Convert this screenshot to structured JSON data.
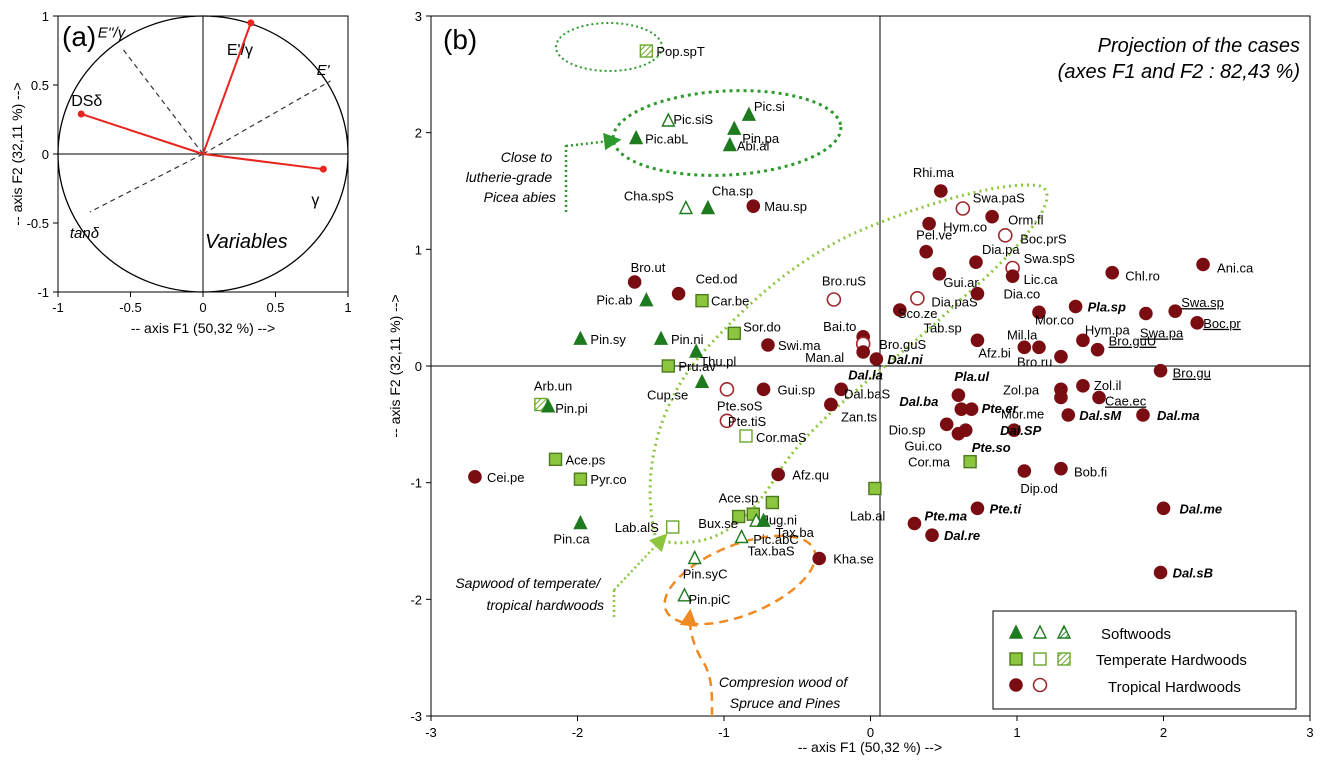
{
  "chart_data": [
    {
      "panel": "(a)",
      "type": "scatter",
      "subtype": "correlation-circle",
      "title": "Variables",
      "xlabel": "-- axis F1 (50,32 %) -->",
      "ylabel": "-- axis F2 (32,11 %) -->",
      "xlim": [
        -1,
        1
      ],
      "ylim": [
        -1,
        1
      ],
      "xticks": [
        "-1",
        "-0.5",
        "0",
        "0.5",
        "1"
      ],
      "yticks": [
        "-1",
        "-0.5",
        "0",
        "0.5",
        "1"
      ],
      "grid": false,
      "active_variables": [
        {
          "label": "DSδ",
          "x": -0.84,
          "y": 0.29
        },
        {
          "label": "E'/γ",
          "x": 0.33,
          "y": 0.95
        },
        {
          "label": "γ",
          "x": 0.83,
          "y": -0.11
        }
      ],
      "supplementary_variables": [
        {
          "label": "E''/γ",
          "x": -0.56,
          "y": 0.77
        },
        {
          "label": "E'",
          "x": 0.88,
          "y": 0.53
        },
        {
          "label": "tanδ",
          "x": -0.78,
          "y": -0.42
        }
      ]
    },
    {
      "panel": "(b)",
      "type": "scatter",
      "title": "Projection of the cases",
      "subtitle": "(axes F1 and F2 : 82,43 %)",
      "xlabel": "-- axis F1 (50,32 %) -->",
      "ylabel": "-- axis F2 (32,11 %) -->",
      "xlim": [
        -3,
        3
      ],
      "ylim": [
        -3,
        3
      ],
      "xticks": [
        "-3",
        "-2",
        "-1",
        "0",
        "1",
        "2",
        "3"
      ],
      "yticks": [
        "-3",
        "-2",
        "-1",
        "0",
        "1",
        "2",
        "3"
      ],
      "grid": false,
      "legend_position": "bottom-right",
      "legend": [
        {
          "label": "Softwoods",
          "markers": [
            "tri-filled",
            "tri-open",
            "tri-hatched"
          ]
        },
        {
          "label": "Temperate Hardwoods",
          "markers": [
            "sq-filled",
            "sq-open",
            "sq-hatched"
          ]
        },
        {
          "label": "Tropical Hardwoods",
          "markers": [
            "circ-filled",
            "circ-open"
          ]
        }
      ],
      "colors": {
        "softwood": "#1e7a1e",
        "temperate": "#8cc63f",
        "tropical": "#7a0d12",
        "tropical_open": "#9e2a2f"
      },
      "points": [
        {
          "label": "Pop.spT",
          "x": -1.53,
          "y": 2.7,
          "g": "sq-hatched",
          "lx": 10,
          "ly": 5
        },
        {
          "label": "Pic.siS",
          "x": -1.38,
          "y": 2.1,
          "g": "tri-open",
          "lx": 5,
          "ly": 3
        },
        {
          "label": "Pic.si",
          "x": -0.83,
          "y": 2.15,
          "g": "tri-filled",
          "lx": 5,
          "ly": -4
        },
        {
          "label": "Pic.abL",
          "x": -1.6,
          "y": 1.95,
          "g": "tri-filled",
          "lx": 9,
          "ly": 5
        },
        {
          "label": "Pin.pa",
          "x": -0.93,
          "y": 2.03,
          "g": "tri-filled",
          "lx": 8,
          "ly": 14
        },
        {
          "label": "Abi.al",
          "x": -0.96,
          "y": 1.89,
          "g": "tri-filled",
          "lx": 7,
          "ly": 5
        },
        {
          "label": "Cha.spS",
          "x": -1.26,
          "y": 1.35,
          "g": "tri-open",
          "lx": -62,
          "ly": -8
        },
        {
          "label": "Cha.sp",
          "x": -1.11,
          "y": 1.35,
          "g": "tri-filled",
          "lx": 4,
          "ly": -13
        },
        {
          "label": "Mau.sp",
          "x": -0.8,
          "y": 1.37,
          "g": "circ-filled",
          "lx": 11,
          "ly": 5
        },
        {
          "label": "Bro.ut",
          "x": -1.61,
          "y": 0.72,
          "g": "circ-filled",
          "lx": -4,
          "ly": -10
        },
        {
          "label": "Ced.od",
          "x": -1.31,
          "y": 0.62,
          "g": "circ-filled",
          "lx": 17,
          "ly": -10
        },
        {
          "label": "Car.be",
          "x": -1.15,
          "y": 0.56,
          "g": "sq-filled",
          "lx": 9,
          "ly": 5
        },
        {
          "label": "Pic.ab",
          "x": -1.53,
          "y": 0.56,
          "g": "tri-filled",
          "lx": -50,
          "ly": 4
        },
        {
          "label": "Pin.sy",
          "x": -1.98,
          "y": 0.23,
          "g": "tri-filled",
          "lx": 10,
          "ly": 5
        },
        {
          "label": "Pin.ni",
          "x": -1.43,
          "y": 0.23,
          "g": "tri-filled",
          "lx": 10,
          "ly": 5
        },
        {
          "label": "Sor.do",
          "x": -0.93,
          "y": 0.28,
          "g": "sq-filled",
          "lx": 9,
          "ly": -2
        },
        {
          "label": "Thu.pl",
          "x": -1.19,
          "y": 0.12,
          "g": "tri-filled",
          "lx": 4,
          "ly": 14
        },
        {
          "label": "Swi.ma",
          "x": -0.7,
          "y": 0.18,
          "g": "circ-filled",
          "lx": 10,
          "ly": 5
        },
        {
          "label": "Pru.av",
          "x": -1.38,
          "y": 0.0,
          "g": "sq-filled",
          "lx": 10,
          "ly": 5
        },
        {
          "label": "Cup.se",
          "x": -1.15,
          "y": -0.14,
          "g": "tri-filled",
          "lx": -55,
          "ly": 17
        },
        {
          "label": "Arb.un",
          "x": -2.25,
          "y": -0.33,
          "g": "sq-hatched",
          "lx": -7,
          "ly": -14
        },
        {
          "label": "Pin.pi",
          "x": -2.2,
          "y": -0.35,
          "g": "tri-filled",
          "lx": 7,
          "ly": 6
        },
        {
          "label": "Gui.sp",
          "x": -0.73,
          "y": -0.2,
          "g": "circ-filled",
          "lx": 14,
          "ly": 5
        },
        {
          "label": "Pte.soS",
          "x": -0.98,
          "y": -0.2,
          "g": "circ-open",
          "lx": -10,
          "ly": 21
        },
        {
          "label": "Pte.tiS",
          "x": -0.98,
          "y": -0.47,
          "g": "circ-open",
          "lx": 1,
          "ly": 5
        },
        {
          "label": "Cor.maS",
          "x": -0.85,
          "y": -0.6,
          "g": "sq-open",
          "lx": 10,
          "ly": 6
        },
        {
          "label": "Ace.ps",
          "x": -2.15,
          "y": -0.8,
          "g": "sq-filled",
          "lx": 10,
          "ly": 5
        },
        {
          "label": "Pyr.co",
          "x": -1.98,
          "y": -0.97,
          "g": "sq-filled",
          "lx": 10,
          "ly": 5
        },
        {
          "label": "Cei.pe",
          "x": -2.7,
          "y": -0.95,
          "g": "circ-filled",
          "lx": 12,
          "ly": 5
        },
        {
          "label": "Afz.qu",
          "x": -0.63,
          "y": -0.93,
          "g": "circ-filled",
          "lx": 14,
          "ly": 5
        },
        {
          "label": "Ace.sp",
          "x": -0.9,
          "y": -1.29,
          "g": "sq-filled",
          "lx": -20,
          "ly": -14
        },
        {
          "label": "Jug.ni",
          "x": -0.67,
          "y": -1.17,
          "g": "sq-filled",
          "lx": -10,
          "ly": 22
        },
        {
          "label": "Bux.se",
          "x": -0.8,
          "y": -1.27,
          "g": "sq-filled",
          "lx": -55,
          "ly": 14
        },
        {
          "label": "Pic.abC",
          "x": -0.78,
          "y": -1.33,
          "g": "tri-open",
          "lx": -3,
          "ly": 23
        },
        {
          "label": "Tax.ba",
          "x": -0.73,
          "y": -1.33,
          "g": "tri-filled",
          "lx": 12,
          "ly": 16
        },
        {
          "label": "Tax.baS",
          "x": -0.88,
          "y": -1.47,
          "g": "tri-open",
          "lx": 6,
          "ly": 18
        },
        {
          "label": "Lab.alS",
          "x": -1.35,
          "y": -1.38,
          "g": "sq-open",
          "lx": -58,
          "ly": 5
        },
        {
          "label": "Pin.ca",
          "x": -1.98,
          "y": -1.35,
          "g": "tri-filled",
          "lx": -27,
          "ly": 20
        },
        {
          "label": "Pin.syC",
          "x": -1.2,
          "y": -1.65,
          "g": "tri-open",
          "lx": -12,
          "ly": 20
        },
        {
          "label": "Pin.piC",
          "x": -1.27,
          "y": -1.97,
          "g": "tri-open",
          "lx": 4,
          "ly": 8
        },
        {
          "label": "Kha.se",
          "x": -0.35,
          "y": -1.65,
          "g": "circ-filled",
          "lx": 14,
          "ly": 5
        },
        {
          "label": "Lab.al",
          "x": 0.03,
          "y": -1.05,
          "g": "sq-filled",
          "lx": -25,
          "ly": 32
        },
        {
          "label": "Bro.ruS",
          "x": -0.25,
          "y": 0.57,
          "g": "circ-open",
          "lx": -12,
          "ly": -14
        },
        {
          "label": "Bai.to",
          "x": -0.05,
          "y": 0.25,
          "g": "circ-filled",
          "lx": -40,
          "ly": -6
        },
        {
          "label": "Bro.guS",
          "x": -0.05,
          "y": 0.19,
          "g": "circ-open",
          "lx": 16,
          "ly": 5
        },
        {
          "label": "Man.al",
          "x": -0.05,
          "y": 0.12,
          "g": "circ-filled",
          "lx": -58,
          "ly": 10
        },
        {
          "label": "Dal.ni",
          "x": 0.04,
          "y": 0.06,
          "g": "circ-filled",
          "lx": 11,
          "ly": 5,
          "b": true
        },
        {
          "label": "Dal.la",
          "x": -0.2,
          "y": -0.2,
          "g": "circ-filled",
          "lx": 7,
          "ly": -10,
          "b": true
        },
        {
          "label": "Dal.baS",
          "x": -0.27,
          "y": -0.33,
          "g": "circ-filled",
          "lx": 13,
          "ly": -6
        },
        {
          "label": "Zan.ts",
          "x": -0.27,
          "y": -0.33,
          "g": "circ-filled",
          "lx": 0,
          "ly": 17
        },
        {
          "label": "Rhi.ma",
          "x": 0.48,
          "y": 1.5,
          "g": "circ-filled",
          "lx": -28,
          "ly": -14
        },
        {
          "label": "Swa.paS",
          "x": 0.63,
          "y": 1.35,
          "g": "circ-open",
          "lx": 10,
          "ly": -6
        },
        {
          "label": "Hym.co",
          "x": 0.4,
          "y": 1.22,
          "g": "circ-filled",
          "lx": 14,
          "ly": 8
        },
        {
          "label": "Orm.fl",
          "x": 0.83,
          "y": 1.28,
          "g": "circ-filled",
          "lx": 16,
          "ly": 8
        },
        {
          "label": "Boc.prS",
          "x": 0.92,
          "y": 1.12,
          "g": "circ-open",
          "lx": 15,
          "ly": 8
        },
        {
          "label": "Pel.ve",
          "x": 0.38,
          "y": 0.98,
          "g": "circ-filled",
          "lx": -10,
          "ly": -12
        },
        {
          "label": "Dia.pa",
          "x": 0.72,
          "y": 0.89,
          "g": "circ-filled",
          "lx": 6,
          "ly": -8
        },
        {
          "label": "Swa.spS",
          "x": 0.97,
          "y": 0.84,
          "g": "circ-open",
          "lx": 11,
          "ly": -5
        },
        {
          "label": "Lic.ca",
          "x": 0.97,
          "y": 0.77,
          "g": "circ-filled",
          "lx": 11,
          "ly": 8
        },
        {
          "label": "Gui.ar",
          "x": 0.47,
          "y": 0.79,
          "g": "circ-filled",
          "lx": 4,
          "ly": 13
        },
        {
          "label": "Chl.ro",
          "x": 1.65,
          "y": 0.8,
          "g": "circ-filled",
          "lx": 13,
          "ly": 8
        },
        {
          "label": "Ani.ca",
          "x": 2.27,
          "y": 0.87,
          "g": "circ-filled",
          "lx": 14,
          "ly": 8
        },
        {
          "label": "Dia.paS",
          "x": 0.32,
          "y": 0.58,
          "g": "circ-open",
          "lx": 14,
          "ly": 8
        },
        {
          "label": "Sco.ze",
          "x": 0.2,
          "y": 0.48,
          "g": "circ-filled",
          "lx": -2,
          "ly": 8
        },
        {
          "label": "Dia.co",
          "x": 0.73,
          "y": 0.62,
          "g": "circ-filled",
          "lx": 26,
          "ly": 0
        },
        {
          "label": "Pla.sp",
          "x": 1.4,
          "y": 0.51,
          "g": "circ-filled",
          "lx": 12,
          "ly": 5,
          "b": true
        },
        {
          "label": "Mor.co",
          "x": 1.15,
          "y": 0.46,
          "g": "circ-filled",
          "lx": -4,
          "ly": 12
        },
        {
          "label": "Swa.sp",
          "x": 2.08,
          "y": 0.47,
          "g": "circ-filled",
          "lx": 6,
          "ly": -4,
          "u": true
        },
        {
          "label": "Swa.pa",
          "x": 1.88,
          "y": 0.45,
          "g": "circ-filled",
          "lx": -6,
          "ly": 24,
          "u": true
        },
        {
          "label": "Boc.pr",
          "x": 2.23,
          "y": 0.37,
          "g": "circ-filled",
          "lx": 6,
          "ly": 5,
          "u": true
        },
        {
          "label": "Tab.sp",
          "x": 0.73,
          "y": 0.22,
          "g": "circ-filled",
          "lx": -54,
          "ly": -8
        },
        {
          "label": "Hym.pa",
          "x": 1.45,
          "y": 0.22,
          "g": "circ-filled",
          "lx": 2,
          "ly": -6
        },
        {
          "label": "Mil.la",
          "x": 1.15,
          "y": 0.16,
          "g": "circ-filled",
          "lx": -32,
          "ly": -8
        },
        {
          "label": "Afz.bi",
          "x": 1.05,
          "y": 0.16,
          "g": "circ-filled",
          "lx": -46,
          "ly": 10
        },
        {
          "label": "Bro.ru",
          "x": 1.3,
          "y": 0.08,
          "g": "circ-filled",
          "lx": -44,
          "ly": 10
        },
        {
          "label": "Bro.guU",
          "x": 1.55,
          "y": 0.14,
          "g": "circ-filled",
          "lx": 11,
          "ly": -4,
          "u": true
        },
        {
          "label": "Bro.gu",
          "x": 1.98,
          "y": -0.04,
          "g": "circ-filled",
          "lx": 12,
          "ly": 7,
          "u": true
        },
        {
          "label": "Pla.ul",
          "x": 0.6,
          "y": -0.25,
          "g": "circ-filled",
          "lx": -4,
          "ly": -14,
          "b": true
        },
        {
          "label": "Dal.ba",
          "x": 0.62,
          "y": -0.37,
          "g": "circ-filled",
          "lx": -62,
          "ly": -3,
          "b": true
        },
        {
          "label": "Pte.er",
          "x": 0.69,
          "y": -0.37,
          "g": "circ-filled",
          "lx": 10,
          "ly": 4,
          "b": true
        },
        {
          "label": "Zol.pa",
          "x": 1.3,
          "y": -0.2,
          "g": "circ-filled",
          "lx": -58,
          "ly": 5
        },
        {
          "label": "Zol.il",
          "x": 1.45,
          "y": -0.17,
          "g": "circ-filled",
          "lx": 11,
          "ly": 4
        },
        {
          "label": "Mor.me",
          "x": 1.3,
          "y": -0.27,
          "g": "circ-filled",
          "lx": -60,
          "ly": 21
        },
        {
          "label": "Cae.ec",
          "x": 1.56,
          "y": -0.27,
          "g": "circ-filled",
          "lx": 6,
          "ly": 8,
          "u": true
        },
        {
          "label": "Dal.sM",
          "x": 1.35,
          "y": -0.42,
          "g": "circ-filled",
          "lx": 11,
          "ly": 5,
          "b": true
        },
        {
          "label": "Dal.ma",
          "x": 1.86,
          "y": -0.42,
          "g": "circ-filled",
          "lx": 14,
          "ly": 5,
          "b": true
        },
        {
          "label": "Dal.SP",
          "x": 0.98,
          "y": -0.55,
          "g": "circ-filled",
          "lx": -14,
          "ly": 5,
          "b": true
        },
        {
          "label": "Dio.sp",
          "x": 0.52,
          "y": -0.5,
          "g": "circ-filled",
          "lx": -58,
          "ly": 10
        },
        {
          "label": "Gui.co",
          "x": 0.6,
          "y": -0.58,
          "g": "circ-filled",
          "lx": -54,
          "ly": 17
        },
        {
          "label": "Pte.so",
          "x": 0.65,
          "y": -0.55,
          "g": "circ-filled",
          "lx": 6,
          "ly": 22,
          "b": true
        },
        {
          "label": "Cor.ma",
          "x": 0.68,
          "y": -0.82,
          "g": "sq-filled",
          "lx": -62,
          "ly": 5
        },
        {
          "label": "Bob.fi",
          "x": 1.3,
          "y": -0.88,
          "g": "circ-filled",
          "lx": 13,
          "ly": 8
        },
        {
          "label": "Dip.od",
          "x": 1.05,
          "y": -0.9,
          "g": "circ-filled",
          "lx": -4,
          "ly": 22
        },
        {
          "label": "Pte.ma",
          "x": 0.3,
          "y": -1.35,
          "g": "circ-filled",
          "lx": 10,
          "ly": -3,
          "b": true
        },
        {
          "label": "Pte.ti",
          "x": 0.73,
          "y": -1.22,
          "g": "circ-filled",
          "lx": 12,
          "ly": 5,
          "b": true
        },
        {
          "label": "Dal.re",
          "x": 0.42,
          "y": -1.45,
          "g": "circ-filled",
          "lx": 12,
          "ly": 5,
          "b": true
        },
        {
          "label": "Dal.me",
          "x": 2.0,
          "y": -1.22,
          "g": "circ-filled",
          "lx": 16,
          "ly": 5,
          "b": true
        },
        {
          "label": "Dal.sB",
          "x": 1.98,
          "y": -1.77,
          "g": "circ-filled",
          "lx": 12,
          "ly": 5,
          "b": true
        }
      ],
      "annotations": [
        {
          "label": "Close to lutherie-grade Picea abies",
          "lines": [
            "Close to",
            "lutherie-grade",
            "Picea abies"
          ],
          "color": "#2e9a2e"
        },
        {
          "label": "Sapwood of temperate/ tropical hardwoods",
          "lines": [
            "Sapwood of temperate/",
            "tropical hardwoods"
          ],
          "color": "#8cc63f"
        },
        {
          "label": "Compresion wood of Spruce and Pines",
          "lines": [
            "Compresion wood of",
            "Spruce and Pines"
          ],
          "color": "#f08a24"
        }
      ]
    }
  ]
}
